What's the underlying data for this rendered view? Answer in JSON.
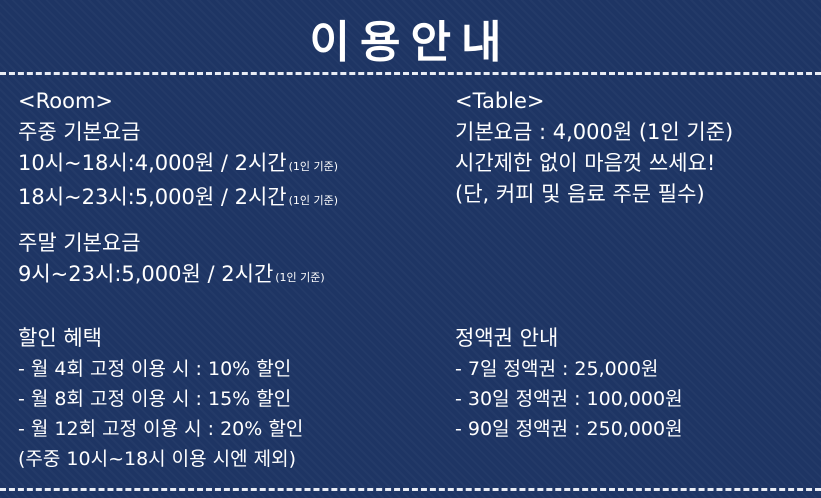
{
  "title": "이용안내",
  "room": {
    "heading": "<Room>",
    "weekday_label": "주중 기본요금",
    "weekday": [
      {
        "text": "10시~18시:4,000원 / 2시간",
        "note": "(1인 기준)"
      },
      {
        "text": "18시~23시:5,000원 / 2시간",
        "note": "(1인 기준)"
      }
    ],
    "weekend_label": "주말 기본요금",
    "weekend": [
      {
        "text": "9시~23시:5,000원  / 2시간",
        "note": "(1인 기준)"
      }
    ]
  },
  "table": {
    "heading": "<Table>",
    "lines": [
      "기본요금 : 4,000원 (1인 기준)",
      "시간제한 없이 마음껏 쓰세요!",
      "(단, 커피 및 음료 주문 필수)"
    ]
  },
  "discount": {
    "heading": "할인 혜택",
    "lines": [
      " - 월 4회 고정 이용 시 : 10% 할인",
      " - 월 8회 고정 이용 시 : 15% 할인",
      " - 월 12회 고정 이용 시 : 20% 할인",
      "  (주중 10시~18시 이용 시엔 제외)"
    ]
  },
  "pass": {
    "heading": "정액권 안내",
    "lines": [
      "-   7일 정액권 : 25,000원",
      "- 30일 정액권 : 100,000원",
      "- 90일 정액권 : 250,000원"
    ]
  }
}
